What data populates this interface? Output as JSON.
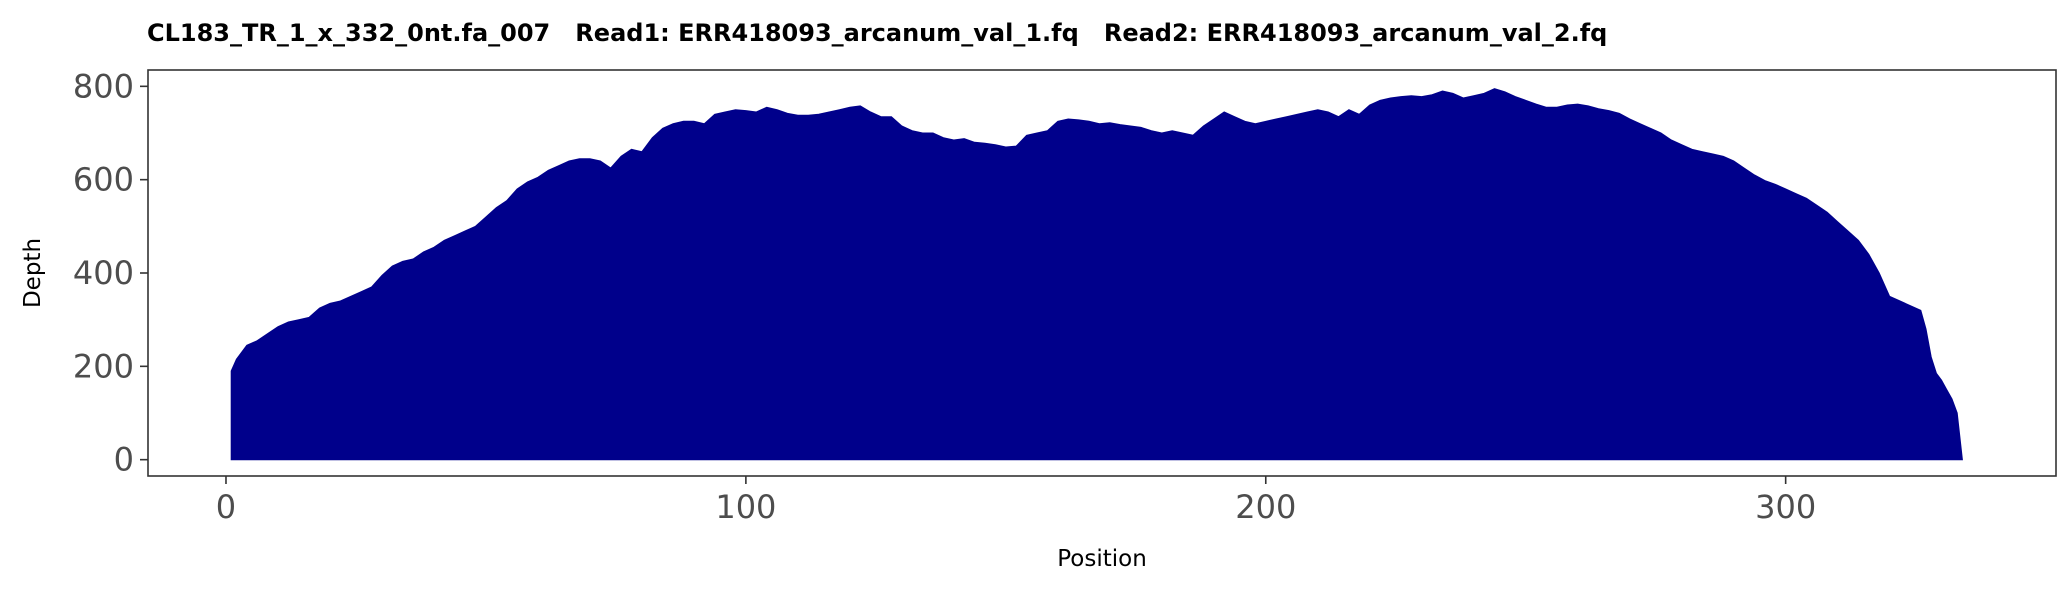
{
  "chart_data": {
    "type": "area",
    "title": "CL183_TR_1_x_332_0nt.fa_007   Read1: ERR418093_arcanum_val_1.fq   Read2: ERR418093_arcanum_val_2.fq",
    "xlabel": "Position",
    "ylabel": "Depth",
    "xlim": [
      -15,
      352
    ],
    "ylim": [
      -35,
      835
    ],
    "x_ticks": [
      0,
      100,
      200,
      300
    ],
    "y_ticks": [
      0,
      200,
      400,
      600,
      800
    ],
    "grid": false,
    "legend": "none",
    "fill_color": "#00008b",
    "x": [
      1,
      2,
      4,
      6,
      8,
      10,
      12,
      14,
      16,
      18,
      20,
      22,
      24,
      26,
      28,
      30,
      32,
      34,
      36,
      38,
      40,
      42,
      44,
      46,
      48,
      50,
      52,
      54,
      56,
      58,
      60,
      62,
      64,
      66,
      68,
      70,
      72,
      74,
      76,
      78,
      80,
      82,
      84,
      86,
      88,
      90,
      92,
      94,
      96,
      98,
      100,
      102,
      104,
      106,
      108,
      110,
      112,
      114,
      116,
      118,
      120,
      122,
      124,
      126,
      128,
      130,
      132,
      134,
      136,
      138,
      140,
      142,
      144,
      146,
      148,
      150,
      152,
      154,
      156,
      158,
      160,
      162,
      164,
      166,
      168,
      170,
      172,
      174,
      176,
      178,
      180,
      182,
      184,
      186,
      188,
      190,
      192,
      194,
      196,
      198,
      200,
      202,
      204,
      206,
      208,
      210,
      212,
      214,
      216,
      218,
      220,
      222,
      224,
      226,
      228,
      230,
      232,
      234,
      236,
      238,
      240,
      242,
      244,
      246,
      248,
      250,
      252,
      254,
      256,
      258,
      260,
      262,
      264,
      266,
      268,
      270,
      272,
      274,
      276,
      278,
      280,
      282,
      284,
      286,
      288,
      290,
      292,
      294,
      296,
      298,
      300,
      302,
      304,
      306,
      308,
      310,
      312,
      314,
      316,
      318,
      320,
      322,
      324,
      326,
      327,
      328,
      329,
      330,
      331,
      332,
      333,
      334
    ],
    "y": [
      190,
      215,
      245,
      255,
      270,
      285,
      295,
      300,
      305,
      325,
      335,
      340,
      350,
      360,
      370,
      395,
      415,
      425,
      430,
      445,
      455,
      470,
      480,
      490,
      500,
      520,
      540,
      555,
      580,
      595,
      605,
      620,
      630,
      640,
      645,
      645,
      640,
      625,
      650,
      665,
      660,
      690,
      710,
      720,
      725,
      725,
      720,
      740,
      745,
      750,
      748,
      745,
      755,
      750,
      742,
      738,
      738,
      740,
      745,
      750,
      755,
      758,
      745,
      735,
      735,
      715,
      705,
      700,
      700,
      690,
      685,
      688,
      680,
      678,
      675,
      670,
      672,
      695,
      700,
      705,
      725,
      730,
      728,
      725,
      720,
      722,
      718,
      715,
      712,
      705,
      700,
      705,
      700,
      695,
      715,
      730,
      745,
      735,
      725,
      720,
      725,
      730,
      735,
      740,
      745,
      750,
      745,
      735,
      750,
      740,
      760,
      770,
      775,
      778,
      780,
      778,
      782,
      790,
      785,
      775,
      780,
      785,
      795,
      788,
      778,
      770,
      762,
      755,
      755,
      760,
      762,
      758,
      752,
      748,
      742,
      730,
      720,
      710,
      700,
      685,
      675,
      665,
      660,
      655,
      650,
      640,
      625,
      610,
      598,
      590,
      580,
      570,
      560,
      545,
      530,
      510,
      490,
      470,
      440,
      400,
      350,
      340,
      330,
      320,
      280,
      220,
      185,
      170,
      150,
      130,
      100,
      0
    ]
  }
}
